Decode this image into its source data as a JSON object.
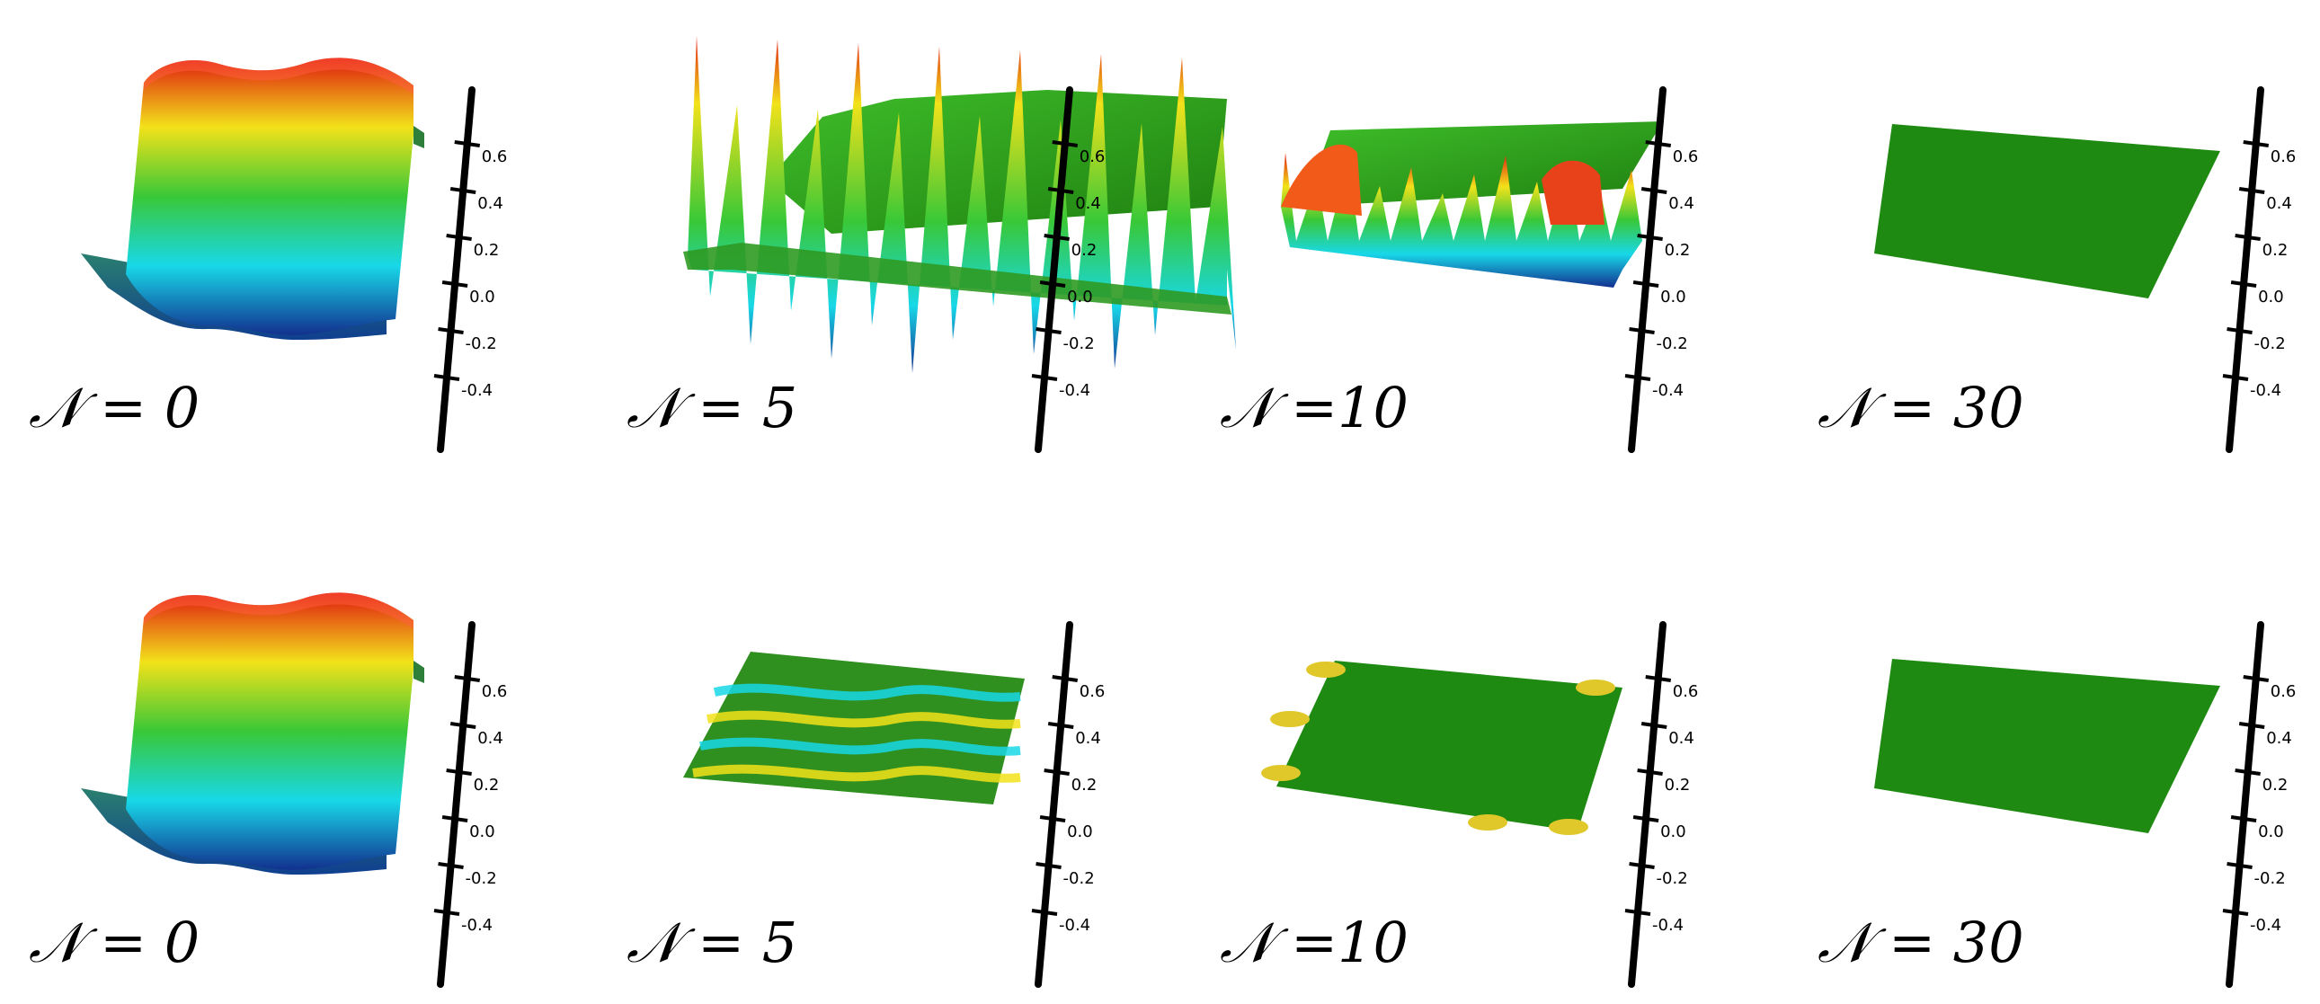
{
  "figure": {
    "rows": [
      {
        "panels": [
          {
            "label": "𝒩 = 0",
            "surface": "initial-slab"
          },
          {
            "label": "𝒩 = 5",
            "surface": "tall-oscillating"
          },
          {
            "label": "𝒩 =10",
            "surface": "rough-ridged"
          },
          {
            "label": "𝒩 = 30",
            "surface": "flat-plane"
          }
        ]
      },
      {
        "panels": [
          {
            "label": "𝒩 = 0",
            "surface": "initial-slab"
          },
          {
            "label": "𝒩 = 5",
            "surface": "low-wavy-sheet"
          },
          {
            "label": "𝒩 =10",
            "surface": "flat-with-edge-bumps"
          },
          {
            "label": "𝒩 = 30",
            "surface": "flat-plane"
          }
        ]
      }
    ],
    "colorbar_ticks": [
      "0.6",
      "0.4",
      "0.2",
      "0.0",
      "-0.2",
      "-0.4"
    ],
    "colors": {
      "high": "#e01a10",
      "mid_high": "#f2e21a",
      "mid": "#39c837",
      "mid_low": "#18d8e8",
      "low": "#12308f",
      "plane": "#1f8a12",
      "axis": "#000000"
    }
  }
}
